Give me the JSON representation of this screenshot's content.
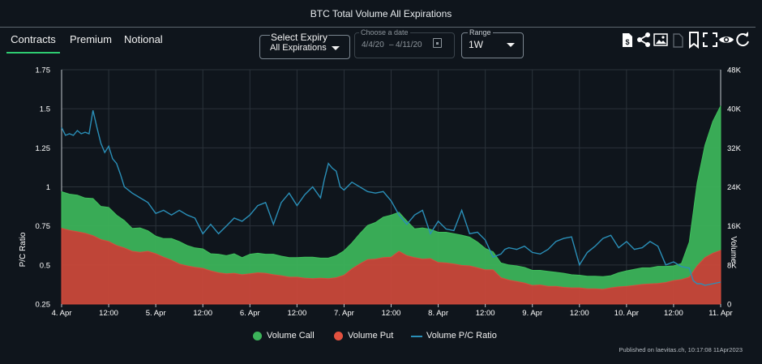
{
  "header": {
    "title": "BTC Total Volume All Expirations"
  },
  "tabs": [
    {
      "label": "Contracts",
      "active": true
    },
    {
      "label": "Premium",
      "active": false
    },
    {
      "label": "Notional",
      "active": false
    }
  ],
  "expiry": {
    "label": "Select Expiry",
    "value": "All Expirations"
  },
  "datepicker": {
    "label": "Choose a date",
    "from": "4/4/20",
    "sep": "–",
    "to": "4/11/20"
  },
  "range": {
    "label": "Range",
    "value": "1W"
  },
  "toolbar": [
    {
      "icon": "dollar-doc-icon"
    },
    {
      "icon": "share-icon"
    },
    {
      "icon": "image-export-icon"
    },
    {
      "icon": "file-disabled-icon"
    },
    {
      "icon": "bookmark-icon"
    },
    {
      "icon": "fullscreen-icon"
    },
    {
      "icon": "eye-icon"
    },
    {
      "icon": "refresh-icon"
    }
  ],
  "colors": {
    "call": "#3cb35a",
    "put": "#c9483a",
    "ratio": "#2a8fb8",
    "grid": "#2b323a",
    "axis": "#ffffff",
    "background": "#0f151c"
  },
  "chart_data": {
    "type": "area",
    "title": "BTC Total Volume All Expirations",
    "x_ticks": [
      "4. Apr",
      "12:00",
      "5. Apr",
      "12:00",
      "6. Apr",
      "12:00",
      "7. Apr",
      "12:00",
      "8. Apr",
      "12:00",
      "9. Apr",
      "12:00",
      "10. Apr",
      "12:00",
      "11. Apr"
    ],
    "x_unit": "hours since 4. Apr 00:00",
    "x_range": [
      0,
      168
    ],
    "left_axis": {
      "label": "P/C Ratio",
      "min": 0.25,
      "max": 1.75,
      "ticks": [
        "0.25",
        "0.5",
        "0.75",
        "1",
        "1.25",
        "1.5",
        "1.75"
      ]
    },
    "right_axis": {
      "label": "Volume",
      "min": 0,
      "max": 48000,
      "ticks": [
        "0",
        "8K",
        "16K",
        "24K",
        "32K",
        "40K",
        "48K"
      ]
    },
    "series": [
      {
        "name": "Volume Call",
        "type": "stacked-area",
        "axis": "right",
        "x": [
          0,
          2,
          4,
          6,
          8,
          10,
          12,
          14,
          16,
          18,
          20,
          22,
          24,
          26,
          28,
          30,
          32,
          34,
          36,
          38,
          40,
          42,
          44,
          46,
          48,
          50,
          52,
          54,
          56,
          58,
          60,
          62,
          64,
          66,
          68,
          70,
          72,
          74,
          76,
          78,
          80,
          82,
          84,
          86,
          88,
          90,
          92,
          94,
          96,
          98,
          100,
          102,
          104,
          106,
          108,
          110,
          112,
          114,
          116,
          118,
          120,
          122,
          124,
          126,
          128,
          130,
          132,
          134,
          136,
          138,
          140,
          142,
          144,
          146,
          148,
          150,
          152,
          154,
          156,
          158,
          160,
          162,
          164,
          166,
          168
        ],
        "values": [
          7500,
          7400,
          7500,
          7200,
          7600,
          6800,
          7000,
          6200,
          5600,
          4700,
          5000,
          4200,
          3600,
          3800,
          4400,
          4600,
          4200,
          4000,
          4000,
          3500,
          3800,
          3700,
          4000,
          3500,
          4000,
          4000,
          3900,
          4200,
          4000,
          4000,
          4000,
          4300,
          4400,
          4100,
          4200,
          4500,
          5000,
          5300,
          6200,
          7000,
          7500,
          8300,
          8600,
          8000,
          7100,
          5900,
          6400,
          6000,
          6200,
          6300,
          6200,
          6200,
          5900,
          5300,
          4400,
          3700,
          3000,
          3100,
          3200,
          3200,
          3100,
          3000,
          3100,
          2900,
          2900,
          2700,
          2600,
          2600,
          2600,
          2600,
          2500,
          2900,
          3200,
          3300,
          3400,
          3300,
          3500,
          3300,
          3000,
          3300,
          7200,
          17000,
          23000,
          27000,
          29600
        ]
      },
      {
        "name": "Volume Put",
        "type": "stacked-area",
        "axis": "right",
        "x": [
          0,
          2,
          4,
          6,
          8,
          10,
          12,
          14,
          16,
          18,
          20,
          22,
          24,
          26,
          28,
          30,
          32,
          34,
          36,
          38,
          40,
          42,
          44,
          46,
          48,
          50,
          52,
          54,
          56,
          58,
          60,
          62,
          64,
          66,
          68,
          70,
          72,
          74,
          76,
          78,
          80,
          82,
          84,
          86,
          88,
          90,
          92,
          94,
          96,
          98,
          100,
          102,
          104,
          106,
          108,
          110,
          112,
          114,
          116,
          118,
          120,
          122,
          124,
          126,
          128,
          130,
          132,
          134,
          136,
          138,
          140,
          142,
          144,
          146,
          148,
          150,
          152,
          154,
          156,
          158,
          160,
          162,
          164,
          166,
          168
        ],
        "values": [
          15500,
          15100,
          14800,
          14500,
          14000,
          13200,
          12800,
          12000,
          11500,
          10800,
          10600,
          10800,
          10300,
          9600,
          9000,
          8200,
          7800,
          7500,
          7300,
          6800,
          6400,
          6200,
          6300,
          6000,
          6200,
          6400,
          6300,
          6000,
          5800,
          5500,
          5500,
          5300,
          5200,
          5300,
          5200,
          5400,
          5900,
          7200,
          8200,
          9100,
          9200,
          9500,
          9600,
          10800,
          9900,
          9500,
          9200,
          9300,
          8500,
          8400,
          8200,
          7900,
          7800,
          7400,
          7000,
          7000,
          5400,
          4900,
          4600,
          4300,
          3800,
          3900,
          3600,
          3600,
          3400,
          3300,
          3300,
          3100,
          3100,
          3000,
          3300,
          3500,
          3600,
          3800,
          4000,
          4100,
          4200,
          4400,
          4800,
          5000,
          5500,
          7800,
          9500,
          10400,
          11000
        ]
      },
      {
        "name": "Volume P/C Ratio",
        "type": "line",
        "axis": "left",
        "x": [
          0,
          1,
          2,
          3,
          4,
          5,
          6,
          7,
          8,
          9,
          10,
          11,
          12,
          13,
          14,
          15,
          16,
          18,
          20,
          22,
          24,
          26,
          28,
          30,
          32,
          34,
          36,
          38,
          40,
          42,
          44,
          46,
          48,
          50,
          52,
          54,
          56,
          58,
          60,
          62,
          64,
          66,
          67,
          68,
          69,
          70,
          71,
          72,
          74,
          76,
          78,
          80,
          82,
          84,
          86,
          88,
          90,
          92,
          94,
          96,
          98,
          100,
          102,
          104,
          106,
          108,
          110,
          112,
          113,
          114,
          116,
          118,
          120,
          122,
          124,
          126,
          128,
          130,
          132,
          134,
          136,
          138,
          140,
          142,
          144,
          146,
          148,
          150,
          152,
          154,
          156,
          158,
          160,
          161,
          162,
          163,
          164,
          166,
          168
        ],
        "values": [
          1.38,
          1.33,
          1.34,
          1.33,
          1.36,
          1.34,
          1.35,
          1.34,
          1.49,
          1.38,
          1.28,
          1.22,
          1.26,
          1.18,
          1.15,
          1.08,
          1.0,
          0.96,
          0.93,
          0.9,
          0.83,
          0.85,
          0.82,
          0.85,
          0.82,
          0.8,
          0.7,
          0.76,
          0.7,
          0.75,
          0.8,
          0.78,
          0.82,
          0.88,
          0.9,
          0.76,
          0.9,
          0.96,
          0.88,
          0.95,
          1.0,
          0.93,
          1.05,
          1.15,
          1.12,
          1.1,
          1.0,
          0.98,
          1.03,
          1.0,
          0.97,
          0.96,
          0.97,
          0.91,
          0.82,
          0.76,
          0.82,
          0.85,
          0.7,
          0.78,
          0.73,
          0.72,
          0.85,
          0.7,
          0.71,
          0.66,
          0.55,
          0.57,
          0.6,
          0.61,
          0.6,
          0.62,
          0.58,
          0.57,
          0.6,
          0.65,
          0.67,
          0.68,
          0.5,
          0.58,
          0.62,
          0.67,
          0.69,
          0.61,
          0.65,
          0.6,
          0.61,
          0.65,
          0.62,
          0.5,
          0.52,
          0.49,
          0.48,
          0.4,
          0.38,
          0.38,
          0.37,
          0.38,
          0.39
        ]
      }
    ]
  },
  "legend": [
    {
      "label": "Volume Call",
      "color": "#3cb35a",
      "marker": "dot"
    },
    {
      "label": "Volume Put",
      "color": "#c9483a",
      "marker": "dot"
    },
    {
      "label": "Volume P/C Ratio",
      "color": "#2a8fb8",
      "marker": "line"
    }
  ],
  "footer": {
    "text": "Published on laevitas.ch, 10:17:08 11Apr2023"
  }
}
